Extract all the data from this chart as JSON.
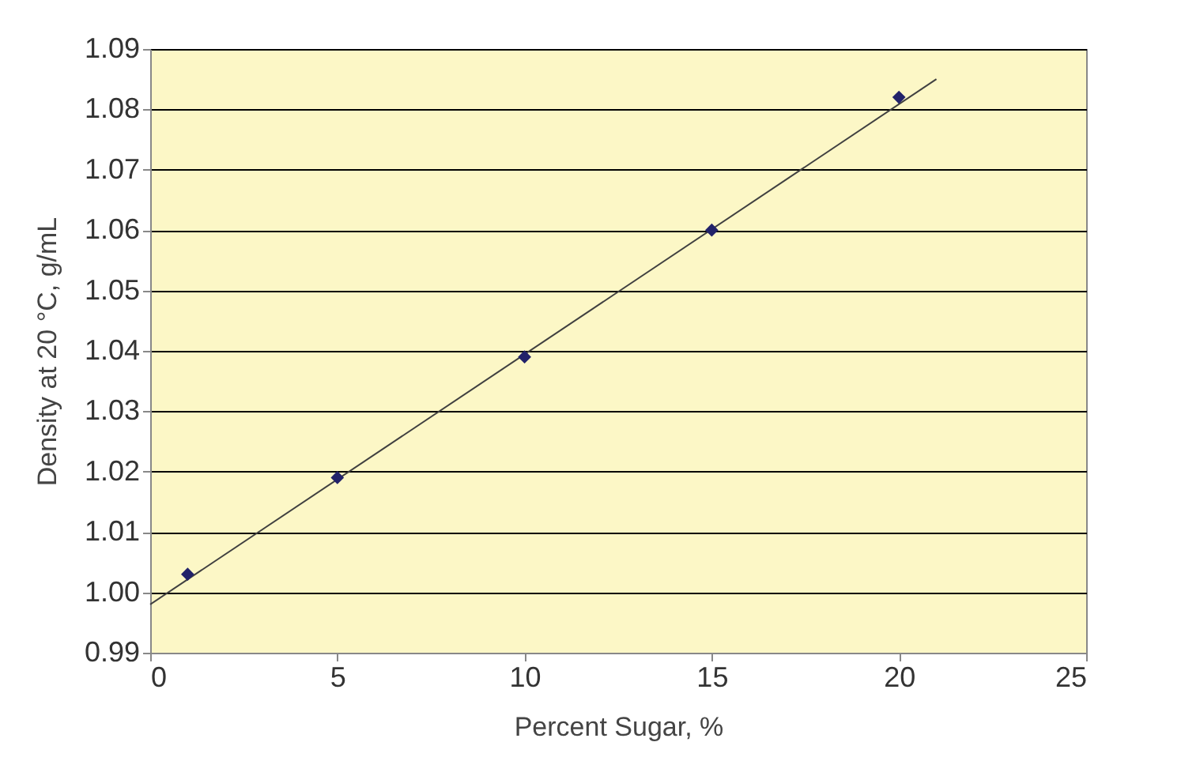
{
  "chart_data": {
    "type": "scatter",
    "xlabel": "Percent Sugar, %",
    "ylabel": "Density at 20 °C, g/mL",
    "xlim": [
      0,
      25
    ],
    "xticks": [
      0,
      5,
      10,
      15,
      20,
      25
    ],
    "ylim": [
      0.99,
      1.09
    ],
    "yticks": [
      0.99,
      {
        "value": 1,
        "label": "1.00"
      },
      1.01,
      1.02,
      1.03,
      1.04,
      1.05,
      1.06,
      1.07,
      1.08,
      1.09
    ],
    "grid": "y",
    "series": [
      {
        "type": "line",
        "color": "#404040",
        "x": [
          0,
          21
        ],
        "values": [
          0.998,
          1.085
        ]
      },
      {
        "type": "scatter",
        "marker": "diamond",
        "color": "#22226a",
        "x": [
          1,
          5,
          10,
          15,
          20
        ],
        "values": [
          1.003,
          1.019,
          1.039,
          1.06,
          1.082
        ]
      }
    ]
  }
}
